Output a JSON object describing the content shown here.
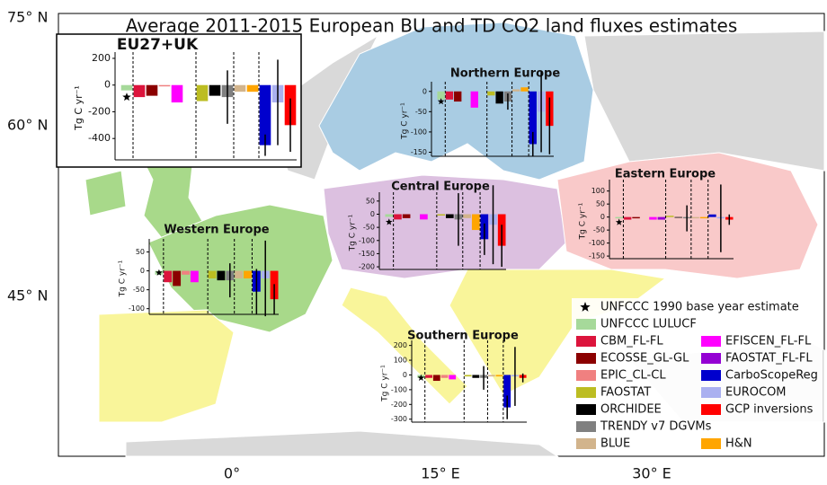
{
  "title": "Average 2011-2015 European BU and TD CO2 land fluxes estimates",
  "lat_labels": [
    "75° N",
    "60° N",
    "45° N"
  ],
  "lon_labels": [
    "0°",
    "15° E",
    "30° E"
  ],
  "star_label": "UNFCCC 1990 base year estimate",
  "series": [
    {
      "name": "UNFCCC LULUCF",
      "color": "#a6d99a"
    },
    {
      "name": "CBM_FL-FL",
      "color": "#dc143c"
    },
    {
      "name": "ECOSSE_GL-GL",
      "color": "#8b0000"
    },
    {
      "name": "EPIC_CL-CL",
      "color": "#f08080"
    },
    {
      "name": "FAOSTAT",
      "color": "#bcbd22"
    },
    {
      "name": "ORCHIDEE",
      "color": "#000000"
    },
    {
      "name": "TRENDY v7 DGVMs",
      "color": "#808080"
    },
    {
      "name": "BLUE",
      "color": "#d2b48c"
    },
    {
      "name": "EFISCEN_FL-FL",
      "color": "#ff00ff"
    },
    {
      "name": "FAOSTAT_FL-FL",
      "color": "#9400d3"
    },
    {
      "name": "CarboScopeReg",
      "color": "#0000cd"
    },
    {
      "name": "EUROCOM",
      "color": "#aab0f0"
    },
    {
      "name": "GCP inversions",
      "color": "#ff0000"
    },
    {
      "name": "H&N",
      "color": "#ffa500"
    }
  ],
  "insets": [
    {
      "title": "EU27+UK",
      "ylabel": "Tg C yr⁻¹",
      "ylim": [
        -560,
        220
      ],
      "yticks": [
        200,
        0,
        -200,
        -400
      ],
      "star": -90,
      "values": [
        -40,
        -90,
        -80,
        -10,
        -120,
        -80,
        -90,
        -50,
        -130,
        null,
        -450,
        -130,
        -300,
        -50
      ],
      "errors": [
        null,
        null,
        null,
        null,
        null,
        null,
        200,
        null,
        null,
        null,
        80,
        320,
        200,
        null
      ]
    },
    {
      "title": "Northern Europe",
      "ylabel": "Tg C yr⁻¹",
      "ylim": [
        -160,
        15
      ],
      "yticks": [
        0,
        -50,
        -100,
        -150
      ],
      "star": -25,
      "values": [
        -20,
        -20,
        -25,
        null,
        -10,
        -30,
        -25,
        5,
        -40,
        null,
        -130,
        -50,
        -85,
        10
      ],
      "errors": [
        null,
        null,
        null,
        null,
        null,
        null,
        20,
        null,
        null,
        null,
        30,
        100,
        70,
        null
      ]
    },
    {
      "title": "Central Europe",
      "ylabel": "Tg C yr⁻¹",
      "ylim": [
        -210,
        70
      ],
      "yticks": [
        50,
        0,
        -50,
        -100,
        -150,
        -200
      ],
      "star": -30,
      "values": [
        -10,
        -20,
        -15,
        null,
        -5,
        -15,
        -20,
        -15,
        -20,
        null,
        -95,
        -40,
        -120,
        -60
      ],
      "errors": [
        null,
        null,
        null,
        null,
        null,
        null,
        100,
        null,
        null,
        null,
        60,
        150,
        80,
        null
      ]
    },
    {
      "title": "Eastern Europe",
      "ylabel": "Tg C yr⁻¹",
      "ylim": [
        -160,
        130
      ],
      "yticks": [
        100,
        50,
        0,
        -50,
        -100,
        -150
      ],
      "star": -20,
      "values": [
        -5,
        -10,
        -5,
        null,
        5,
        0,
        -5,
        -5,
        -10,
        -10,
        10,
        -5,
        -10,
        -5
      ],
      "errors": [
        null,
        null,
        null,
        null,
        null,
        null,
        50,
        null,
        null,
        null,
        null,
        130,
        20,
        null
      ]
    },
    {
      "title": "Western Europe",
      "ylabel": "Tg C yr⁻¹",
      "ylim": [
        -115,
        75
      ],
      "yticks": [
        50,
        0,
        -50,
        -100
      ],
      "star": -5,
      "values": [
        -10,
        -30,
        -40,
        -10,
        -20,
        -25,
        -25,
        -20,
        -30,
        null,
        -55,
        -20,
        -75,
        -20
      ],
      "errors": [
        null,
        null,
        null,
        null,
        null,
        null,
        45,
        null,
        null,
        null,
        60,
        100,
        40,
        null
      ]
    },
    {
      "title": "Southern Europe",
      "ylabel": "Tg C yr⁻¹",
      "ylim": [
        -320,
        210
      ],
      "yticks": [
        200,
        100,
        0,
        -100,
        -200,
        -300
      ],
      "star": -20,
      "values": [
        -20,
        -20,
        -40,
        -20,
        -10,
        -20,
        -20,
        -10,
        -30,
        null,
        -220,
        -10,
        -20,
        -10
      ],
      "errors": [
        null,
        null,
        null,
        null,
        null,
        null,
        80,
        null,
        null,
        null,
        80,
        200,
        30,
        null
      ]
    }
  ]
}
